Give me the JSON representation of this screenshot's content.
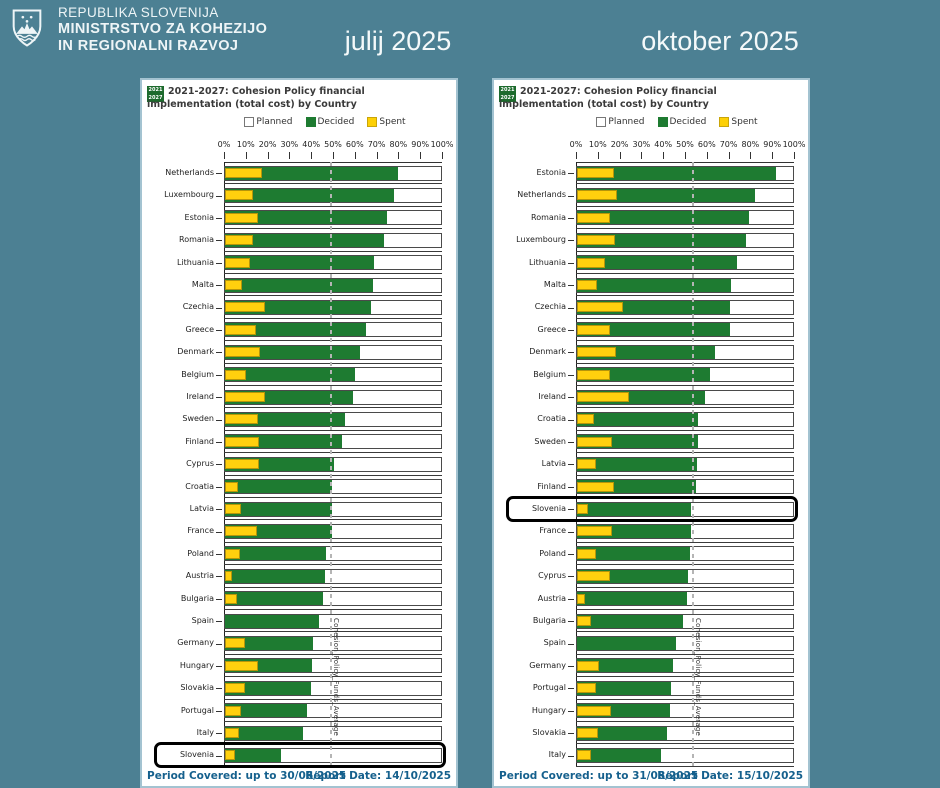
{
  "header": {
    "ministry_line1": "REPUBLIKA SLOVENIJA",
    "ministry_line2": "MINISTRSTVO ZA KOHEZIJO",
    "ministry_line3": "IN REGIONALNI RAZVOJ",
    "month_left": "julij 2025",
    "month_right": "oktober 2025"
  },
  "colors": {
    "background": "#4c8093",
    "decided_green": "#1e7b31",
    "spent_yellow": "#fdd005",
    "planned_white": "#ffffff",
    "footer_blue": "#15608d",
    "highlight_black": "#000000"
  },
  "chart_data": [
    {
      "type": "bar",
      "badge_line1": "2021",
      "badge_line2": "2027",
      "title_line1": "2021-2027: Cohesion Policy financial",
      "title_line2": "implementation (total cost) by Country",
      "legend": [
        "Planned",
        "Decided",
        "Spent"
      ],
      "x_axis": {
        "min": 0,
        "max": 100,
        "tick_step": 10,
        "unit": "%"
      },
      "x_ticks": [
        "0%",
        "10%",
        "20%",
        "30%",
        "40%",
        "50%",
        "60%",
        "70%",
        "80%",
        "90%",
        "100%"
      ],
      "average_line_label": "Cohesion_Policy_Funds_Average",
      "average_pct": 48.7,
      "highlight_country": "Slovenia",
      "highlight_index": 26,
      "categories": [
        "Netherlands",
        "Luxembourg",
        "Estonia",
        "Romania",
        "Lithuania",
        "Malta",
        "Czechia",
        "Greece",
        "Denmark",
        "Belgium",
        "Ireland",
        "Sweden",
        "Finland",
        "Cyprus",
        "Croatia",
        "Latvia",
        "France",
        "Poland",
        "Austria",
        "Bulgaria",
        "Spain",
        "Germany",
        "Hungary",
        "Slovakia",
        "Portugal",
        "Italy",
        "Slovenia"
      ],
      "series": [
        {
          "name": "Planned",
          "values": [
            100,
            100,
            100,
            100,
            100,
            100,
            100,
            100,
            100,
            100,
            100,
            100,
            100,
            100,
            100,
            100,
            100,
            100,
            100,
            100,
            100,
            100,
            100,
            100,
            100,
            100,
            100
          ]
        },
        {
          "name": "Decided",
          "values": [
            79.5,
            77.5,
            74.5,
            73,
            68.5,
            68,
            67,
            64.5,
            62,
            59.5,
            58.8,
            55,
            53.5,
            49.8,
            49.3,
            49.1,
            48.9,
            46.3,
            46,
            45,
            43.3,
            40.5,
            40,
            39.3,
            37.5,
            36,
            25.8
          ]
        },
        {
          "name": "Spent",
          "values": [
            17,
            13,
            15,
            13,
            11.5,
            8,
            18.5,
            14,
            16,
            9.5,
            18.5,
            15,
            15.5,
            15.5,
            6,
            7.5,
            14.5,
            7,
            3,
            5.5,
            0,
            9,
            15,
            9,
            7.5,
            6.5,
            4.5
          ]
        }
      ],
      "footer_period": "Period Covered: up to 30/06/2025",
      "footer_report": "Report Date: 14/10/2025"
    },
    {
      "type": "bar",
      "badge_line1": "2021",
      "badge_line2": "2027",
      "title_line1": "2021-2027: Cohesion Policy financial",
      "title_line2": "implementation (total cost) by Country",
      "legend": [
        "Planned",
        "Decided",
        "Spent"
      ],
      "x_axis": {
        "min": 0,
        "max": 100,
        "tick_step": 10,
        "unit": "%"
      },
      "x_ticks": [
        "0%",
        "10%",
        "20%",
        "30%",
        "40%",
        "50%",
        "60%",
        "70%",
        "80%",
        "90%",
        "100%"
      ],
      "average_line_label": "Cohesion_Policy_Funds_Average",
      "average_pct": 53.1,
      "highlight_country": "Slovenia",
      "highlight_index": 15,
      "categories": [
        "Estonia",
        "Netherlands",
        "Romania",
        "Luxembourg",
        "Lithuania",
        "Malta",
        "Czechia",
        "Greece",
        "Denmark",
        "Belgium",
        "Ireland",
        "Croatia",
        "Sweden",
        "Latvia",
        "Finland",
        "Slovenia",
        "France",
        "Poland",
        "Cyprus",
        "Austria",
        "Bulgaria",
        "Spain",
        "Germany",
        "Portugal",
        "Hungary",
        "Slovakia",
        "Italy"
      ],
      "series": [
        {
          "name": "Planned",
          "values": [
            100,
            100,
            100,
            100,
            100,
            100,
            100,
            100,
            100,
            100,
            100,
            100,
            100,
            100,
            100,
            100,
            100,
            100,
            100,
            100,
            100,
            100,
            100,
            100,
            100,
            100,
            100
          ]
        },
        {
          "name": "Decided",
          "values": [
            91.5,
            81.5,
            79,
            77.5,
            73.5,
            70.5,
            70.3,
            70,
            63.5,
            61,
            58.5,
            55.5,
            55.3,
            55,
            54.7,
            52.5,
            52.3,
            51.8,
            51,
            50.5,
            48.5,
            45.5,
            44,
            43,
            42.5,
            41.5,
            38.5
          ]
        },
        {
          "name": "Spent",
          "values": [
            17,
            18.5,
            15,
            17.5,
            13,
            9,
            21,
            15,
            18,
            15,
            24,
            8,
            16,
            8.5,
            17,
            5,
            16,
            8.5,
            15,
            3.5,
            6.5,
            0,
            10,
            8.5,
            15.5,
            9.5,
            6.5
          ]
        }
      ],
      "footer_period": "Period Covered: up to 31/08/2025",
      "footer_report": "Report Date: 15/10/2025"
    }
  ]
}
